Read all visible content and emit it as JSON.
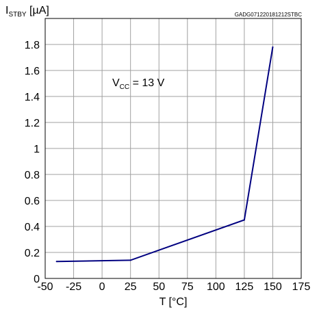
{
  "chart_data": {
    "type": "line",
    "ylabel_main": "I",
    "ylabel_sub": "STBY",
    "ylabel_unit": " [µA]",
    "xlabel": "T [°C]",
    "figure_code": "GADG071220181212STBC",
    "annotation_main": "V",
    "annotation_sub": "CC",
    "annotation_value": " = 13 V",
    "xlim": [
      -50,
      175
    ],
    "ylim": [
      0,
      2.0
    ],
    "x_ticks": [
      "-50",
      "-25",
      "0",
      "25",
      "50",
      "75",
      "100",
      "125",
      "150",
      "175"
    ],
    "y_ticks": [
      "0",
      "0.2",
      "0.4",
      "0.6",
      "0.8",
      "1",
      "1.2",
      "1.4",
      "1.6",
      "1.8"
    ],
    "grid": true,
    "line_color": "#000080",
    "series": [
      {
        "x": [
          -40,
          25,
          125,
          150
        ],
        "y": [
          0.13,
          0.14,
          0.45,
          1.78
        ]
      }
    ]
  }
}
